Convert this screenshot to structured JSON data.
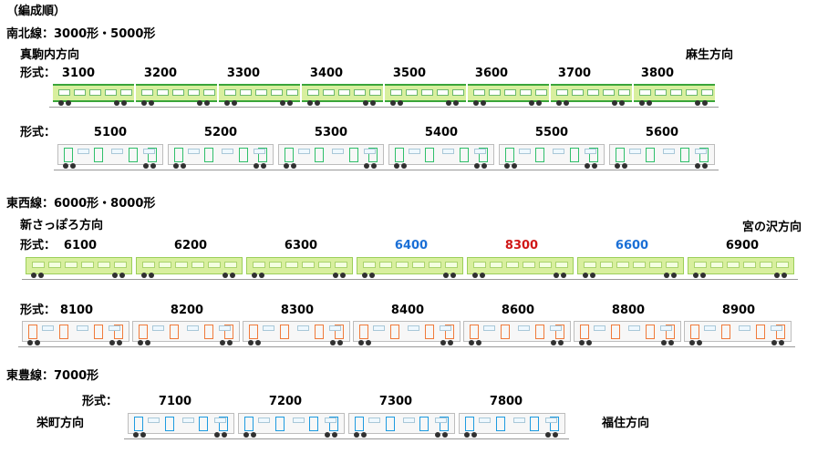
{
  "heading": "（編成順）",
  "colors": {
    "line_green": "#3aa53a",
    "car_green": "#d8ef9e",
    "car_white": "#f7f7f7",
    "door_green": "#2fbf6a",
    "door_orange": "#f07a3a",
    "door_blue": "#1e9be0",
    "num_blue": "#1a6fd6",
    "num_red": "#d01818",
    "rail_gray": "#999999"
  },
  "lines": [
    {
      "title": "南北線：3000形・5000形",
      "dir_left": "真駒内方向",
      "dir_right": "麻生方向",
      "rows": [
        {
          "label": "形式：",
          "style": "green-stripe",
          "cars": [
            {
              "num": "3100"
            },
            {
              "num": "3200"
            },
            {
              "num": "3300"
            },
            {
              "num": "3400"
            },
            {
              "num": "3500"
            },
            {
              "num": "3600"
            },
            {
              "num": "3700"
            },
            {
              "num": "3800"
            }
          ]
        },
        {
          "label": "形式：",
          "style": "white-green",
          "cars": [
            {
              "num": "5100"
            },
            {
              "num": "5200"
            },
            {
              "num": "5300"
            },
            {
              "num": "5400"
            },
            {
              "num": "5500"
            },
            {
              "num": "5600"
            }
          ]
        }
      ]
    },
    {
      "title": "東西線：6000形・8000形",
      "dir_left": "新さっぽろ方向",
      "dir_right": "宮の沢方向",
      "rows": [
        {
          "label": "形式：",
          "style": "light-green",
          "cars": [
            {
              "num": "6100"
            },
            {
              "num": "6200"
            },
            {
              "num": "6300"
            },
            {
              "num": "6400",
              "color": "blue"
            },
            {
              "num": "8300",
              "color": "red"
            },
            {
              "num": "6600",
              "color": "blue"
            },
            {
              "num": "6900"
            }
          ]
        },
        {
          "label": "形式：",
          "style": "white-orange",
          "cars": [
            {
              "num": "8100"
            },
            {
              "num": "8200"
            },
            {
              "num": "8300"
            },
            {
              "num": "8400"
            },
            {
              "num": "8600"
            },
            {
              "num": "8800"
            },
            {
              "num": "8900"
            }
          ]
        }
      ]
    },
    {
      "title": "東豊線：7000形",
      "dir_left": "栄町方向",
      "dir_right": "福住方向",
      "rows": [
        {
          "label": "形式：",
          "style": "white-blue",
          "cars": [
            {
              "num": "7100"
            },
            {
              "num": "7200"
            },
            {
              "num": "7300"
            },
            {
              "num": "7800"
            }
          ]
        }
      ]
    }
  ]
}
